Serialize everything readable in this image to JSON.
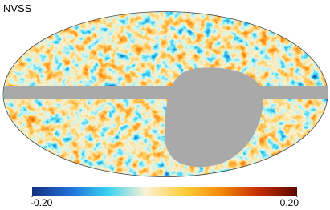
{
  "title": "NVSS",
  "colorbar": {
    "ticks": [
      {
        "value": -0.2,
        "label": "-0.20"
      },
      {
        "value": 0.2,
        "label": "0.20"
      }
    ],
    "colors": [
      "#14307f",
      "#1f6fd6",
      "#38d2f2",
      "#fbf1d6",
      "#ffcf3a",
      "#f28a0a",
      "#c42a00",
      "#5a0a00"
    ]
  }
}
